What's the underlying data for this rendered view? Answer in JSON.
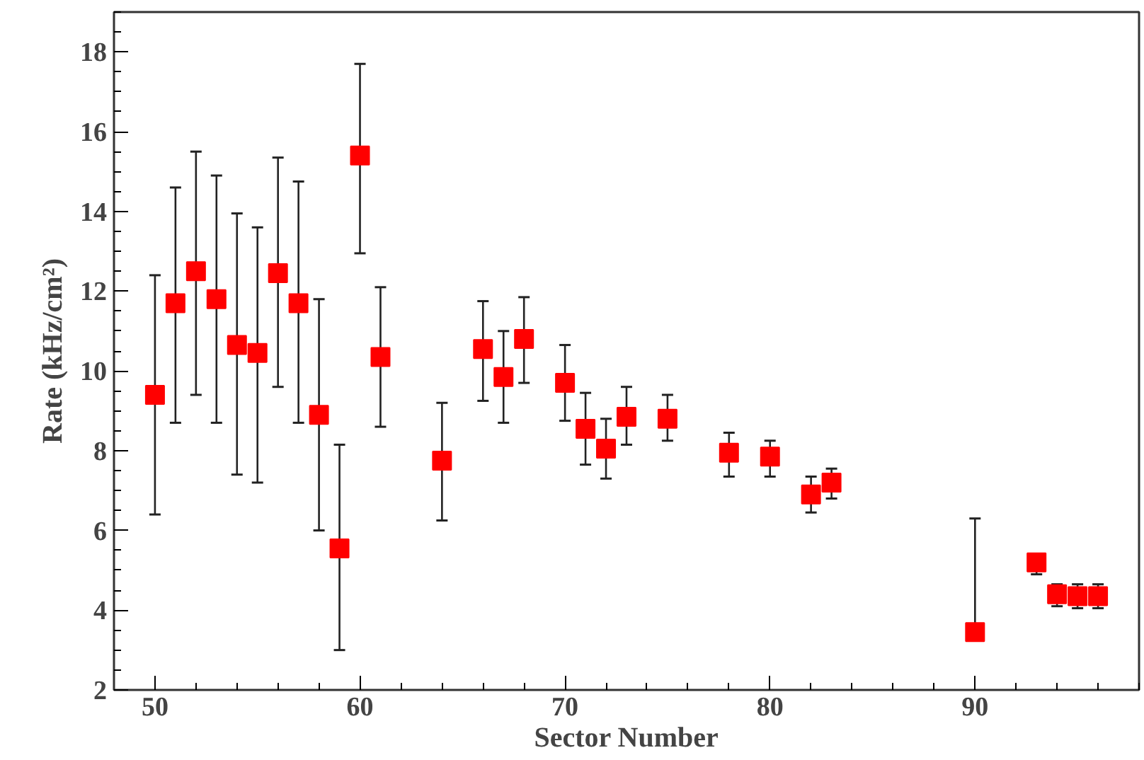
{
  "chart_data": {
    "type": "scatter",
    "xlabel": "Sector Number",
    "ylabel": "Rate (kHz/cm²)",
    "x": [
      50,
      51,
      52,
      53,
      54,
      55,
      56,
      57,
      58,
      59,
      60,
      61,
      64,
      66,
      67,
      68,
      70,
      71,
      72,
      73,
      75,
      78,
      80,
      82,
      83,
      90,
      93,
      94,
      95,
      96
    ],
    "values": [
      9.4,
      11.7,
      12.5,
      11.8,
      10.65,
      10.45,
      12.45,
      11.7,
      8.9,
      5.55,
      15.4,
      10.35,
      7.75,
      10.55,
      9.85,
      10.8,
      9.7,
      8.55,
      8.05,
      8.85,
      8.8,
      7.95,
      7.85,
      6.9,
      7.2,
      3.45,
      5.2,
      4.4,
      4.35,
      4.35
    ],
    "errors": [
      [
        6.4,
        12.4
      ],
      [
        8.7,
        14.6
      ],
      [
        9.4,
        15.5
      ],
      [
        8.7,
        14.9
      ],
      [
        7.4,
        13.95
      ],
      [
        7.2,
        13.6
      ],
      [
        9.6,
        15.35
      ],
      [
        8.7,
        14.75
      ],
      [
        6.0,
        11.8
      ],
      [
        3.0,
        8.15
      ],
      [
        12.95,
        17.7
      ],
      [
        8.6,
        12.1
      ],
      [
        6.25,
        9.2
      ],
      [
        9.25,
        11.75
      ],
      [
        8.7,
        11.0
      ],
      [
        9.7,
        11.85
      ],
      [
        8.75,
        10.65
      ],
      [
        7.65,
        9.45
      ],
      [
        7.3,
        8.8
      ],
      [
        8.15,
        9.6
      ],
      [
        8.25,
        9.4
      ],
      [
        7.35,
        8.45
      ],
      [
        7.35,
        8.25
      ],
      [
        6.45,
        7.35
      ],
      [
        6.8,
        7.55
      ],
      [
        3.45,
        6.3
      ],
      [
        4.9,
        5.2
      ],
      [
        4.1,
        4.65
      ],
      [
        4.05,
        4.65
      ],
      [
        4.05,
        4.65
      ]
    ],
    "color": "#ff0000",
    "marker": "square",
    "xlim": [
      48,
      98
    ],
    "ylim": [
      2,
      19
    ],
    "xticks": [
      50,
      60,
      70,
      80,
      90
    ],
    "yticks": [
      2,
      4,
      6,
      8,
      10,
      12,
      14,
      16,
      18
    ],
    "grid": false
  }
}
